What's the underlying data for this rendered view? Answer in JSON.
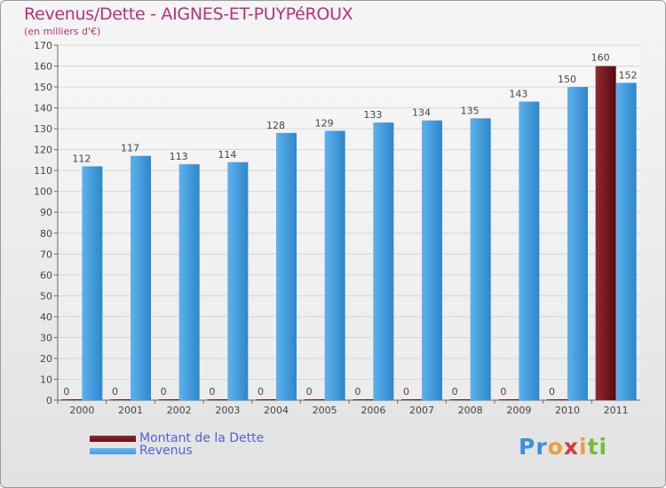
{
  "header": {
    "title": "Revenus/Dette - AIGNES-ET-PUYPéROUX",
    "subtitle": "(en milliers d'€)"
  },
  "colors": {
    "title": "#b5317a",
    "dette": "#6b1016",
    "revenus": "#3f9ee0",
    "legend_text": "#4f63d9"
  },
  "legend": {
    "items": [
      {
        "label": "Montant de la Dette",
        "color": "#6b1016"
      },
      {
        "label": "Revenus",
        "color": "#3f9ee0"
      }
    ]
  },
  "logo": {
    "text": "Proxiti"
  },
  "chart_data": {
    "type": "bar",
    "categories": [
      "2000",
      "2001",
      "2002",
      "2003",
      "2004",
      "2005",
      "2006",
      "2007",
      "2008",
      "2009",
      "2010",
      "2011"
    ],
    "series": [
      {
        "name": "Montant de la Dette",
        "values": [
          0,
          0,
          0,
          0,
          0,
          0,
          0,
          0,
          0,
          0,
          0,
          160
        ]
      },
      {
        "name": "Revenus",
        "values": [
          112,
          117,
          113,
          114,
          128,
          129,
          133,
          134,
          135,
          143,
          150,
          152
        ]
      }
    ],
    "ylim": [
      0,
      170
    ],
    "yticks": [
      0,
      10,
      20,
      30,
      40,
      50,
      60,
      70,
      80,
      90,
      100,
      110,
      120,
      130,
      140,
      150,
      160,
      170
    ],
    "grid": true,
    "legend_position": "bottom-left"
  }
}
